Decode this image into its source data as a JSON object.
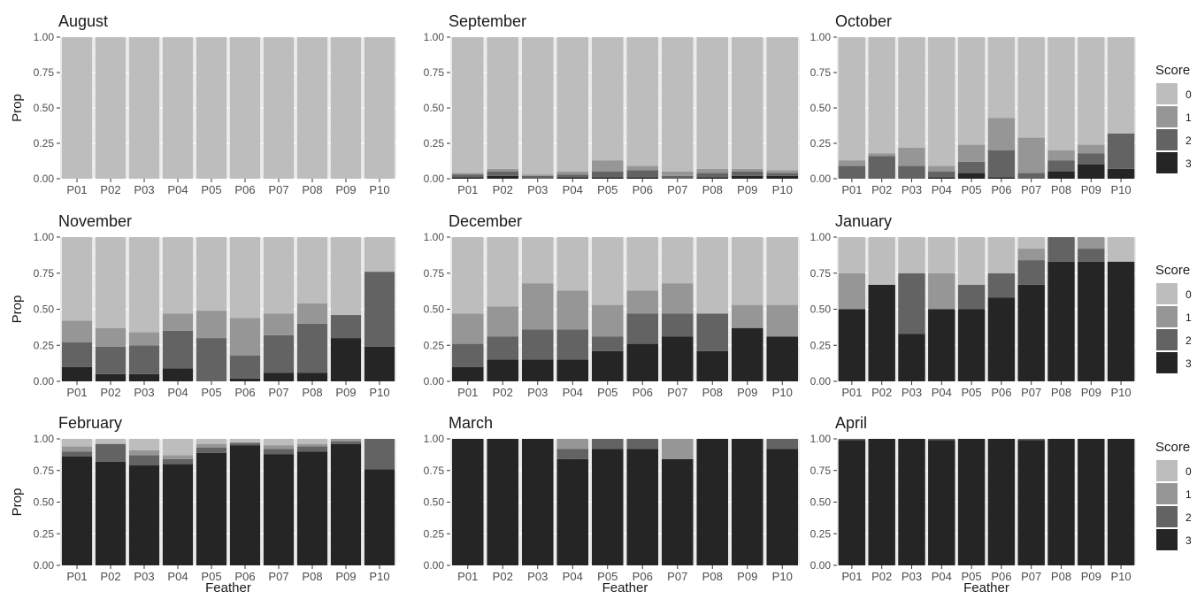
{
  "chart_data": {
    "type": "bar",
    "stacked": true,
    "xlabel": "Feather",
    "ylabel": "Prop",
    "ylim": [
      0,
      1
    ],
    "yticks": [
      "0.00",
      "0.25",
      "0.50",
      "0.75",
      "1.00"
    ],
    "categories": [
      "P01",
      "P02",
      "P03",
      "P04",
      "P05",
      "P06",
      "P07",
      "P08",
      "P09",
      "P10"
    ],
    "legend": {
      "title": "Score",
      "entries": [
        "0",
        "1",
        "2",
        "3"
      ],
      "colors": [
        "#bdbdbd",
        "#969696",
        "#636363",
        "#252525"
      ]
    },
    "panels": [
      {
        "title": "August",
        "series": [
          {
            "name": "3",
            "values": [
              0,
              0,
              0,
              0,
              0,
              0,
              0,
              0,
              0,
              0
            ]
          },
          {
            "name": "2",
            "values": [
              0,
              0,
              0,
              0,
              0,
              0,
              0,
              0,
              0,
              0
            ]
          },
          {
            "name": "1",
            "values": [
              0,
              0,
              0,
              0,
              0,
              0,
              0,
              0,
              0,
              0
            ]
          },
          {
            "name": "0",
            "values": [
              1,
              1,
              1,
              1,
              1,
              1,
              1,
              1,
              1,
              1
            ]
          }
        ]
      },
      {
        "title": "September",
        "series": [
          {
            "name": "3",
            "values": [
              0.01,
              0.02,
              0,
              0.01,
              0.01,
              0.01,
              0,
              0.01,
              0.02,
              0.02
            ]
          },
          {
            "name": "2",
            "values": [
              0.02,
              0.03,
              0.02,
              0.02,
              0.04,
              0.05,
              0.02,
              0.03,
              0.03,
              0.02
            ]
          },
          {
            "name": "1",
            "values": [
              0.01,
              0.02,
              0.01,
              0.02,
              0.08,
              0.03,
              0.03,
              0.03,
              0.02,
              0.02
            ]
          },
          {
            "name": "0",
            "values": [
              0.96,
              0.93,
              0.97,
              0.95,
              0.87,
              0.91,
              0.95,
              0.93,
              0.93,
              0.94
            ]
          }
        ]
      },
      {
        "title": "October",
        "series": [
          {
            "name": "3",
            "values": [
              0,
              0,
              0,
              0.01,
              0.04,
              0.01,
              0,
              0.05,
              0.1,
              0.07
            ]
          },
          {
            "name": "2",
            "values": [
              0.09,
              0.16,
              0.09,
              0.04,
              0.08,
              0.19,
              0.04,
              0.08,
              0.08,
              0.25
            ]
          },
          {
            "name": "1",
            "values": [
              0.04,
              0.02,
              0.13,
              0.04,
              0.12,
              0.23,
              0.25,
              0.07,
              0.06,
              0
            ]
          },
          {
            "name": "0",
            "values": [
              0.87,
              0.82,
              0.78,
              0.91,
              0.76,
              0.57,
              0.71,
              0.8,
              0.76,
              0.68
            ]
          }
        ]
      },
      {
        "title": "November",
        "series": [
          {
            "name": "3",
            "values": [
              0.1,
              0.05,
              0.05,
              0.09,
              0,
              0.02,
              0.06,
              0.06,
              0.3,
              0.24
            ]
          },
          {
            "name": "2",
            "values": [
              0.17,
              0.19,
              0.2,
              0.26,
              0.3,
              0.16,
              0.26,
              0.34,
              0.16,
              0.52
            ]
          },
          {
            "name": "1",
            "values": [
              0.15,
              0.13,
              0.09,
              0.12,
              0.19,
              0.26,
              0.15,
              0.14,
              0,
              0
            ]
          },
          {
            "name": "0",
            "values": [
              0.58,
              0.63,
              0.66,
              0.53,
              0.51,
              0.56,
              0.53,
              0.46,
              0.54,
              0.24
            ]
          }
        ]
      },
      {
        "title": "December",
        "series": [
          {
            "name": "3",
            "values": [
              0.1,
              0.15,
              0.15,
              0.15,
              0.21,
              0.26,
              0.31,
              0.21,
              0.37,
              0.31
            ]
          },
          {
            "name": "2",
            "values": [
              0.16,
              0.16,
              0.21,
              0.21,
              0.1,
              0.21,
              0.16,
              0.26,
              0,
              0
            ]
          },
          {
            "name": "1",
            "values": [
              0.21,
              0.21,
              0.32,
              0.27,
              0.22,
              0.16,
              0.21,
              0,
              0.16,
              0.22
            ]
          },
          {
            "name": "0",
            "values": [
              0.53,
              0.48,
              0.32,
              0.37,
              0.47,
              0.37,
              0.32,
              0.53,
              0.47,
              0.47
            ]
          }
        ]
      },
      {
        "title": "January",
        "series": [
          {
            "name": "3",
            "values": [
              0.5,
              0.67,
              0.33,
              0.5,
              0.5,
              0.58,
              0.67,
              0.83,
              0.83,
              0.83
            ]
          },
          {
            "name": "2",
            "values": [
              0,
              0,
              0.42,
              0,
              0.17,
              0.17,
              0.17,
              0.17,
              0.09,
              0
            ]
          },
          {
            "name": "1",
            "values": [
              0.25,
              0,
              0,
              0.25,
              0,
              0,
              0.08,
              0,
              0.08,
              0
            ]
          },
          {
            "name": "0",
            "values": [
              0.25,
              0.33,
              0.25,
              0.25,
              0.33,
              0.25,
              0.08,
              0,
              0,
              0.17
            ]
          }
        ]
      },
      {
        "title": "February",
        "series": [
          {
            "name": "3",
            "values": [
              0.86,
              0.82,
              0.79,
              0.8,
              0.89,
              0.95,
              0.88,
              0.9,
              0.96,
              0.76
            ]
          },
          {
            "name": "2",
            "values": [
              0.04,
              0.14,
              0.08,
              0.04,
              0.04,
              0.02,
              0.04,
              0.04,
              0.02,
              0.24
            ]
          },
          {
            "name": "1",
            "values": [
              0.04,
              0,
              0.04,
              0.03,
              0.03,
              0,
              0.03,
              0.02,
              0.02,
              0
            ]
          },
          {
            "name": "0",
            "values": [
              0.06,
              0.04,
              0.09,
              0.13,
              0.04,
              0.03,
              0.05,
              0.04,
              0,
              0
            ]
          }
        ]
      },
      {
        "title": "March",
        "series": [
          {
            "name": "3",
            "values": [
              1,
              1,
              1,
              0.84,
              0.92,
              0.92,
              0.84,
              1,
              1,
              0.92
            ]
          },
          {
            "name": "2",
            "values": [
              0,
              0,
              0,
              0.08,
              0.08,
              0.08,
              0,
              0,
              0,
              0.08
            ]
          },
          {
            "name": "1",
            "values": [
              0,
              0,
              0,
              0.08,
              0,
              0,
              0.16,
              0,
              0,
              0
            ]
          },
          {
            "name": "0",
            "values": [
              0,
              0,
              0,
              0,
              0,
              0,
              0,
              0,
              0,
              0
            ]
          }
        ]
      },
      {
        "title": "April",
        "series": [
          {
            "name": "3",
            "values": [
              0.99,
              1,
              1,
              0.99,
              1,
              1,
              0.99,
              1,
              1,
              1
            ]
          },
          {
            "name": "2",
            "values": [
              0.01,
              0,
              0,
              0.01,
              0,
              0,
              0.01,
              0,
              0,
              0
            ]
          },
          {
            "name": "1",
            "values": [
              0,
              0,
              0,
              0,
              0,
              0,
              0,
              0,
              0,
              0
            ]
          },
          {
            "name": "0",
            "values": [
              0,
              0,
              0,
              0,
              0,
              0,
              0,
              0,
              0,
              0
            ]
          }
        ]
      }
    ]
  }
}
